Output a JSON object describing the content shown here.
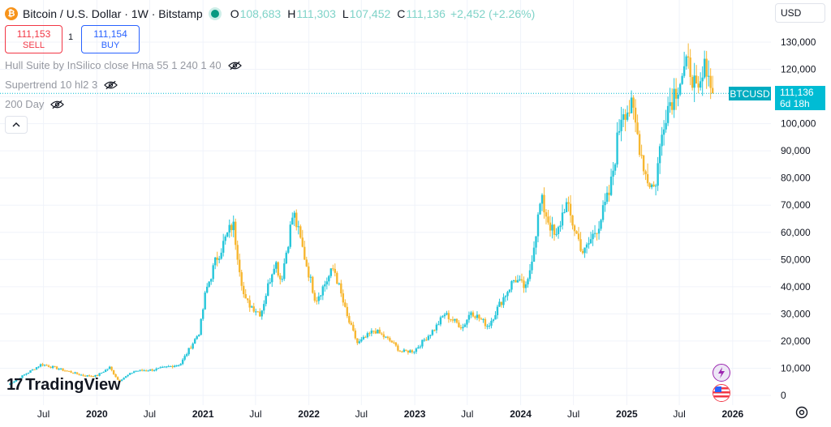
{
  "header": {
    "symbol_title": "Bitcoin / U.S. Dollar · 1W · Bitstamp",
    "btc_glyph": "₿",
    "o_label": "O",
    "o_value": "108,683",
    "h_label": "H",
    "h_value": "111,303",
    "l_label": "L",
    "l_value": "107,452",
    "c_label": "C",
    "c_value": "111,136",
    "change": "+2,452 (+2.26%)"
  },
  "trade": {
    "sell_price": "111,153",
    "sell_label": "SELL",
    "spread": "1",
    "buy_price": "111,154",
    "buy_label": "BUY"
  },
  "indicators": [
    {
      "label": "Hull Suite by InSilico close Hma 55 1 240 1 40"
    },
    {
      "label": "Supertrend 10 hl2 3"
    },
    {
      "label": "200 Day"
    }
  ],
  "currency": "USD",
  "branding": {
    "logo_mark": "17",
    "logo_text": "TradingView"
  },
  "price_label": {
    "symbol": "BTCUSD",
    "price": "111,136",
    "countdown": "6d 18h"
  },
  "colors": {
    "up": "#26c6da",
    "down": "#f7b731",
    "accent": "#00bcd4",
    "btc": "#f7931a"
  },
  "chart_data": {
    "type": "candlestick",
    "title": "Bitcoin / U.S. Dollar · 1W · Bitstamp",
    "ylim": [
      0,
      135000
    ],
    "y_ticks": [
      0,
      10000,
      20000,
      30000,
      40000,
      50000,
      60000,
      70000,
      80000,
      90000,
      100000,
      110000,
      120000,
      130000
    ],
    "y_tick_labels": [
      "0",
      "10,000",
      "20,000",
      "30,000",
      "40,000",
      "50,000",
      "60,000",
      "70,000",
      "80,000",
      "90,000",
      "100,000",
      "110,000",
      "120,000",
      "130,000"
    ],
    "x_ticks": [
      {
        "t": "2019-07-01",
        "label": "Jul"
      },
      {
        "t": "2020-01-01",
        "label": "2020"
      },
      {
        "t": "2020-07-01",
        "label": "Jul"
      },
      {
        "t": "2021-01-01",
        "label": "2021"
      },
      {
        "t": "2021-07-01",
        "label": "Jul"
      },
      {
        "t": "2022-01-01",
        "label": "2022"
      },
      {
        "t": "2022-07-01",
        "label": "Jul"
      },
      {
        "t": "2023-01-01",
        "label": "2023"
      },
      {
        "t": "2023-07-01",
        "label": "Jul"
      },
      {
        "t": "2024-01-01",
        "label": "2024"
      },
      {
        "t": "2024-07-01",
        "label": "Jul"
      },
      {
        "t": "2025-01-01",
        "label": "2025"
      },
      {
        "t": "2025-07-01",
        "label": "Jul"
      },
      {
        "t": "2026-01-01",
        "label": "2026"
      }
    ],
    "x_range": [
      "2019-03-01",
      "2026-04-01"
    ],
    "last_price": 111136,
    "grid": true,
    "path": [
      [
        "2019-03-01",
        3900
      ],
      [
        "2019-06-24",
        11500
      ],
      [
        "2019-08-15",
        10000
      ],
      [
        "2019-11-20",
        7200
      ],
      [
        "2019-12-31",
        7200
      ],
      [
        "2020-02-14",
        10300
      ],
      [
        "2020-03-16",
        5300
      ],
      [
        "2020-05-10",
        9000
      ],
      [
        "2020-07-20",
        9500
      ],
      [
        "2020-10-15",
        11500
      ],
      [
        "2020-12-20",
        23500
      ],
      [
        "2021-01-10",
        38000
      ],
      [
        "2021-02-15",
        50000
      ],
      [
        "2021-04-14",
        63500
      ],
      [
        "2021-05-24",
        35000
      ],
      [
        "2021-07-19",
        30000
      ],
      [
        "2021-09-06",
        50000
      ],
      [
        "2021-09-27",
        42000
      ],
      [
        "2021-11-08",
        67500
      ],
      [
        "2022-01-24",
        35000
      ],
      [
        "2022-03-28",
        47000
      ],
      [
        "2022-05-12",
        29000
      ],
      [
        "2022-06-18",
        19000
      ],
      [
        "2022-08-15",
        24000
      ],
      [
        "2022-10-15",
        19500
      ],
      [
        "2022-11-14",
        16000
      ],
      [
        "2022-12-31",
        16500
      ],
      [
        "2023-03-14",
        25000
      ],
      [
        "2023-04-14",
        30000
      ],
      [
        "2023-06-15",
        25000
      ],
      [
        "2023-07-14",
        31000
      ],
      [
        "2023-09-11",
        25500
      ],
      [
        "2023-10-23",
        34000
      ],
      [
        "2023-12-11",
        43000
      ],
      [
        "2024-01-22",
        39000
      ],
      [
        "2024-03-11",
        72000
      ],
      [
        "2024-05-01",
        57000
      ],
      [
        "2024-06-03",
        71000
      ],
      [
        "2024-08-05",
        52000
      ],
      [
        "2024-09-30",
        64000
      ],
      [
        "2024-11-04",
        75000
      ],
      [
        "2024-12-16",
        106000
      ],
      [
        "2025-01-20",
        105000
      ],
      [
        "2025-03-10",
        80000
      ],
      [
        "2025-04-07",
        76000
      ],
      [
        "2025-05-12",
        104000
      ],
      [
        "2025-07-14",
        119000
      ],
      [
        "2025-08-11",
        121000
      ],
      [
        "2025-09-01",
        108000
      ],
      [
        "2025-10-06",
        124000
      ],
      [
        "2025-10-20",
        108683
      ],
      [
        "2025-10-27",
        111136
      ]
    ]
  }
}
